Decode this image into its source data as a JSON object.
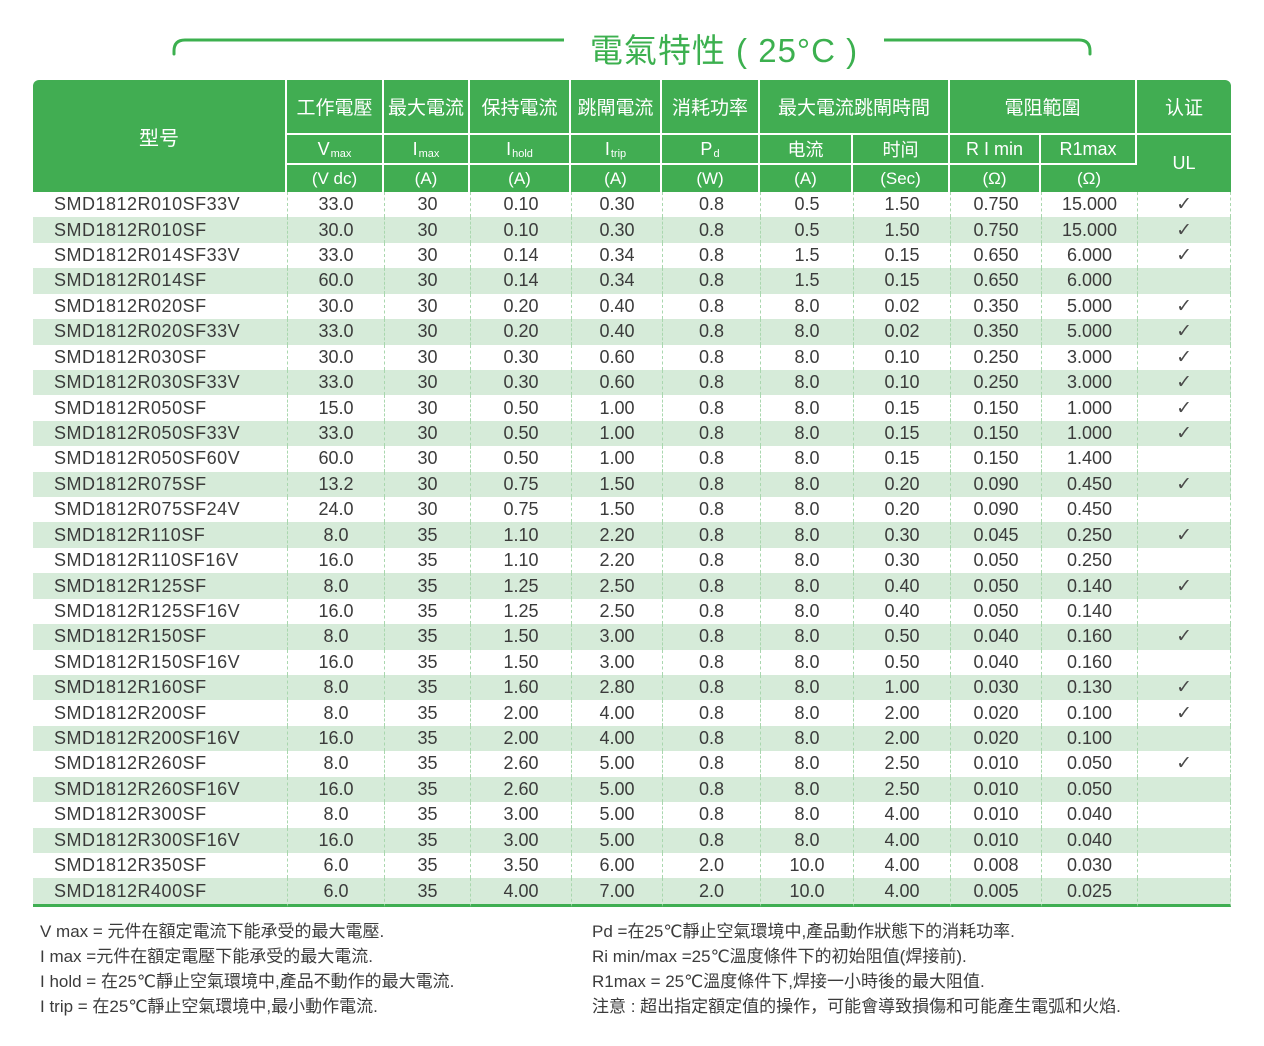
{
  "title": "電氣特性 ( 25°C )",
  "colors": {
    "accent_green": "#41ad52",
    "title_green": "#3cb04f",
    "stripe_green": "#d6ebd9",
    "dash_border": "#a9d7ae"
  },
  "table": {
    "model_header": "型号",
    "group_labels": [
      "工作電壓",
      "最大電流",
      "保持電流",
      "跳閘電流",
      "消耗功率",
      "最大電流跳閘時間",
      "電阻範圍",
      "认证"
    ],
    "cols": [
      {
        "sym": "V",
        "sub": "max",
        "unit": "(V dc)"
      },
      {
        "sym": "I",
        "sub": "max",
        "unit": "(A)"
      },
      {
        "sym": "I",
        "sub": "hold",
        "unit": "(A)"
      },
      {
        "sym": "I",
        "sub": "trip",
        "unit": "(A)"
      },
      {
        "sym": "P",
        "sub": "d",
        "unit": "(W)"
      },
      {
        "sym": "电流",
        "sub": "",
        "unit": "(A)"
      },
      {
        "sym": "时间",
        "sub": "",
        "unit": "(Sec)"
      },
      {
        "sym": "R I min",
        "sub": "",
        "unit": "(Ω)"
      },
      {
        "sym": "R1max",
        "sub": "",
        "unit": "(Ω)"
      }
    ],
    "ul_label": "UL",
    "check_glyph": "✓",
    "rows": [
      [
        "SMD1812R010SF33V",
        "33.0",
        "30",
        "0.10",
        "0.30",
        "0.8",
        "0.5",
        "1.50",
        "0.750",
        "15.000",
        true
      ],
      [
        "SMD1812R010SF",
        "30.0",
        "30",
        "0.10",
        "0.30",
        "0.8",
        "0.5",
        "1.50",
        "0.750",
        "15.000",
        true
      ],
      [
        "SMD1812R014SF33V",
        "33.0",
        "30",
        "0.14",
        "0.34",
        "0.8",
        "1.5",
        "0.15",
        "0.650",
        "6.000",
        true
      ],
      [
        "SMD1812R014SF",
        "60.0",
        "30",
        "0.14",
        "0.34",
        "0.8",
        "1.5",
        "0.15",
        "0.650",
        "6.000",
        false
      ],
      [
        "SMD1812R020SF",
        "30.0",
        "30",
        "0.20",
        "0.40",
        "0.8",
        "8.0",
        "0.02",
        "0.350",
        "5.000",
        true
      ],
      [
        "SMD1812R020SF33V",
        "33.0",
        "30",
        "0.20",
        "0.40",
        "0.8",
        "8.0",
        "0.02",
        "0.350",
        "5.000",
        true
      ],
      [
        "SMD1812R030SF",
        "30.0",
        "30",
        "0.30",
        "0.60",
        "0.8",
        "8.0",
        "0.10",
        "0.250",
        "3.000",
        true
      ],
      [
        "SMD1812R030SF33V",
        "33.0",
        "30",
        "0.30",
        "0.60",
        "0.8",
        "8.0",
        "0.10",
        "0.250",
        "3.000",
        true
      ],
      [
        "SMD1812R050SF",
        "15.0",
        "30",
        "0.50",
        "1.00",
        "0.8",
        "8.0",
        "0.15",
        "0.150",
        "1.000",
        true
      ],
      [
        "SMD1812R050SF33V",
        "33.0",
        "30",
        "0.50",
        "1.00",
        "0.8",
        "8.0",
        "0.15",
        "0.150",
        "1.000",
        true
      ],
      [
        "SMD1812R050SF60V",
        "60.0",
        "30",
        "0.50",
        "1.00",
        "0.8",
        "8.0",
        "0.15",
        "0.150",
        "1.400",
        false
      ],
      [
        "SMD1812R075SF",
        "13.2",
        "30",
        "0.75",
        "1.50",
        "0.8",
        "8.0",
        "0.20",
        "0.090",
        "0.450",
        true
      ],
      [
        "SMD1812R075SF24V",
        "24.0",
        "30",
        "0.75",
        "1.50",
        "0.8",
        "8.0",
        "0.20",
        "0.090",
        "0.450",
        false
      ],
      [
        "SMD1812R110SF",
        "8.0",
        "35",
        "1.10",
        "2.20",
        "0.8",
        "8.0",
        "0.30",
        "0.045",
        "0.250",
        true
      ],
      [
        "SMD1812R110SF16V",
        "16.0",
        "35",
        "1.10",
        "2.20",
        "0.8",
        "8.0",
        "0.30",
        "0.050",
        "0.250",
        false
      ],
      [
        "SMD1812R125SF",
        "8.0",
        "35",
        "1.25",
        "2.50",
        "0.8",
        "8.0",
        "0.40",
        "0.050",
        "0.140",
        true
      ],
      [
        "SMD1812R125SF16V",
        "16.0",
        "35",
        "1.25",
        "2.50",
        "0.8",
        "8.0",
        "0.40",
        "0.050",
        "0.140",
        false
      ],
      [
        "SMD1812R150SF",
        "8.0",
        "35",
        "1.50",
        "3.00",
        "0.8",
        "8.0",
        "0.50",
        "0.040",
        "0.160",
        true
      ],
      [
        "SMD1812R150SF16V",
        "16.0",
        "35",
        "1.50",
        "3.00",
        "0.8",
        "8.0",
        "0.50",
        "0.040",
        "0.160",
        false
      ],
      [
        "SMD1812R160SF",
        "8.0",
        "35",
        "1.60",
        "2.80",
        "0.8",
        "8.0",
        "1.00",
        "0.030",
        "0.130",
        true
      ],
      [
        "SMD1812R200SF",
        "8.0",
        "35",
        "2.00",
        "4.00",
        "0.8",
        "8.0",
        "2.00",
        "0.020",
        "0.100",
        true
      ],
      [
        "SMD1812R200SF16V",
        "16.0",
        "35",
        "2.00",
        "4.00",
        "0.8",
        "8.0",
        "2.00",
        "0.020",
        "0.100",
        false
      ],
      [
        "SMD1812R260SF",
        "8.0",
        "35",
        "2.60",
        "5.00",
        "0.8",
        "8.0",
        "2.50",
        "0.010",
        "0.050",
        true
      ],
      [
        "SMD1812R260SF16V",
        "16.0",
        "35",
        "2.60",
        "5.00",
        "0.8",
        "8.0",
        "2.50",
        "0.010",
        "0.050",
        false
      ],
      [
        "SMD1812R300SF",
        "8.0",
        "35",
        "3.00",
        "5.00",
        "0.8",
        "8.0",
        "4.00",
        "0.010",
        "0.040",
        false
      ],
      [
        "SMD1812R300SF16V",
        "16.0",
        "35",
        "3.00",
        "5.00",
        "0.8",
        "8.0",
        "4.00",
        "0.010",
        "0.040",
        false
      ],
      [
        "SMD1812R350SF",
        "6.0",
        "35",
        "3.50",
        "6.00",
        "2.0",
        "10.0",
        "4.00",
        "0.008",
        "0.030",
        false
      ],
      [
        "SMD1812R400SF",
        "6.0",
        "35",
        "4.00",
        "7.00",
        "2.0",
        "10.0",
        "4.00",
        "0.005",
        "0.025",
        false
      ]
    ]
  },
  "notes": {
    "left": [
      "V max = 元件在額定電流下能承受的最大電壓.",
      "I max =元件在額定電壓下能承受的最大電流.",
      "I hold = 在25℃靜止空氣環境中,產品不動作的最大電流.",
      "I trip = 在25℃靜止空氣環境中,最小動作電流."
    ],
    "right": [
      "Pd =在25℃靜止空氣環境中,產品動作狀態下的消耗功率.",
      "Ri min/max  =25℃溫度條件下的初始阻值(焊接前).",
      "R1max  = 25℃溫度條件下,焊接一小時後的最大阻值.",
      "注意 : 超出指定額定值的操作，可能會導致損傷和可能產生電弧和火焰."
    ]
  }
}
